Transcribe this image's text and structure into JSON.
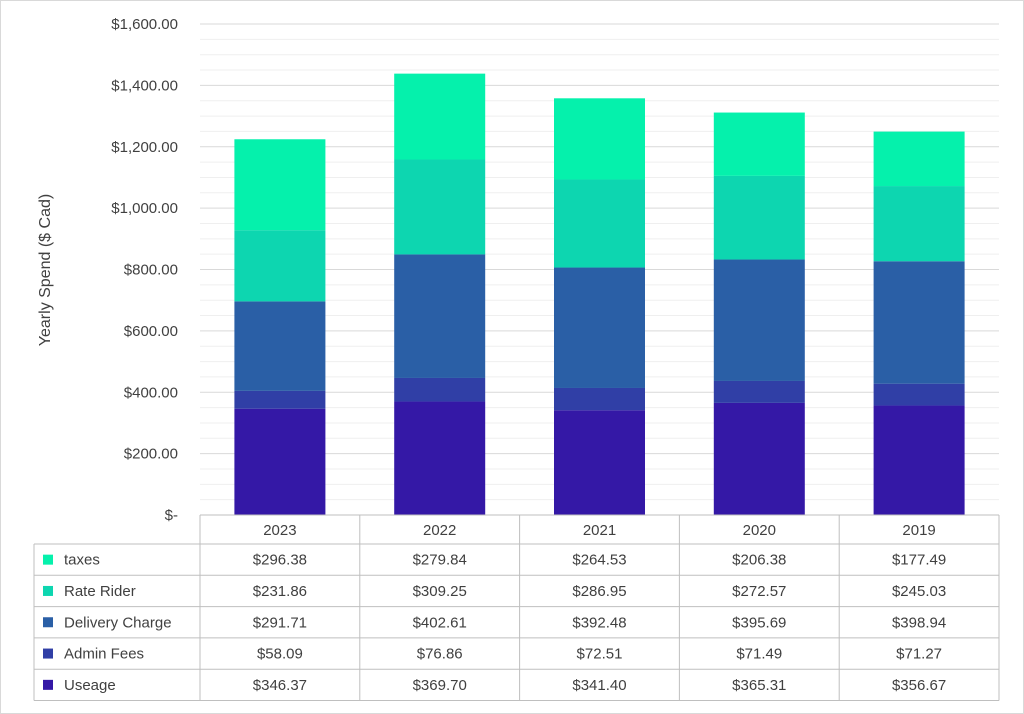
{
  "chart_data": {
    "type": "bar",
    "stacked": true,
    "categories": [
      "2023",
      "2022",
      "2021",
      "2020",
      "2019"
    ],
    "series": [
      {
        "name": "Useage",
        "color": "#3418A6",
        "values": [
          346.37,
          369.7,
          341.4,
          365.31,
          356.67
        ],
        "labels": [
          "$346.37",
          "$369.70",
          "$341.40",
          "$365.31",
          "$356.67"
        ]
      },
      {
        "name": "Admin Fees",
        "color": "#303FA6",
        "values": [
          58.09,
          76.86,
          72.51,
          71.49,
          71.27
        ],
        "labels": [
          "$58.09",
          "$76.86",
          "$72.51",
          "$71.49",
          "$71.27"
        ]
      },
      {
        "name": "Delivery Charge",
        "color": "#2A5FA6",
        "values": [
          291.71,
          402.61,
          392.48,
          395.69,
          398.94
        ],
        "labels": [
          "$291.71",
          "$402.61",
          "$392.48",
          "$395.69",
          "$398.94"
        ]
      },
      {
        "name": "Rate Rider",
        "color": "#0DD6B0",
        "values": [
          231.86,
          309.25,
          286.95,
          272.57,
          245.03
        ],
        "labels": [
          "$231.86",
          "$309.25",
          "$286.95",
          "$272.57",
          "$245.03"
        ]
      },
      {
        "name": "taxes",
        "color": "#05F1AC",
        "values": [
          296.38,
          279.84,
          264.53,
          206.38,
          177.49
        ],
        "labels": [
          "$296.38",
          "$279.84",
          "$264.53",
          "$206.38",
          "$177.49"
        ]
      }
    ],
    "ylabel": "Yearly Spend ($ Cad)",
    "ylim": [
      0,
      1600
    ],
    "yticks": [
      0,
      200,
      400,
      600,
      800,
      1000,
      1200,
      1400,
      1600
    ],
    "ytick_labels": [
      "$-",
      "$200.00",
      "$400.00",
      "$600.00",
      "$800.00",
      "$1,000.00",
      "$1,200.00",
      "$1,400.00",
      "$1,600.00"
    ],
    "grid": true,
    "legend": "data-table-below",
    "table_row_order": [
      "taxes",
      "Rate Rider",
      "Delivery Charge",
      "Admin Fees",
      "Useage"
    ]
  }
}
